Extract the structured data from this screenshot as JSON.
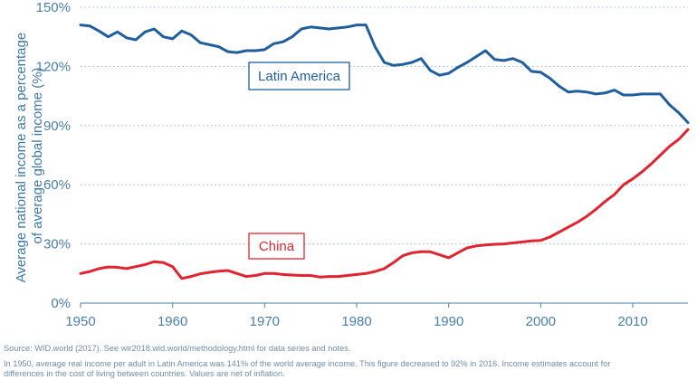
{
  "chart_data": {
    "type": "line",
    "ylabel": "Average national income as a percentage of average global income (%)",
    "ylabel_lines": [
      "Average national income as a percentage",
      "of average global income (%)"
    ],
    "xlim": [
      1950,
      2016
    ],
    "ylim": [
      0,
      150
    ],
    "x_ticks": [
      1950,
      1960,
      1970,
      1980,
      1990,
      2000,
      2010
    ],
    "y_ticks": [
      0,
      30,
      60,
      90,
      120,
      150
    ],
    "y_tick_labels": [
      "0%",
      "30%",
      "60%",
      "90%",
      "120%",
      "150%"
    ],
    "grid": "horizontal-dotted",
    "series": [
      {
        "name": "Latin America",
        "color": "#1f5f9e",
        "x": [
          1950,
          1951,
          1952,
          1953,
          1954,
          1955,
          1956,
          1957,
          1958,
          1959,
          1960,
          1961,
          1962,
          1963,
          1964,
          1965,
          1966,
          1967,
          1968,
          1969,
          1970,
          1971,
          1972,
          1973,
          1974,
          1975,
          1976,
          1977,
          1978,
          1979,
          1980,
          1981,
          1982,
          1983,
          1984,
          1985,
          1986,
          1987,
          1988,
          1989,
          1990,
          1991,
          1992,
          1993,
          1994,
          1995,
          1996,
          1997,
          1998,
          1999,
          2000,
          2001,
          2002,
          2003,
          2004,
          2005,
          2006,
          2007,
          2008,
          2009,
          2010,
          2011,
          2012,
          2013,
          2014,
          2015,
          2016
        ],
        "values": [
          141,
          140.5,
          138,
          135,
          137.5,
          134.5,
          133.5,
          137.5,
          139,
          135,
          134,
          138,
          136,
          132,
          131,
          130,
          127.5,
          127,
          128,
          128,
          128.5,
          131.5,
          132.5,
          135,
          139,
          140,
          139.5,
          139,
          139.5,
          140,
          141,
          141,
          130,
          122,
          120.5,
          121,
          122,
          124,
          118,
          115.5,
          116.5,
          119.5,
          122,
          125,
          128,
          123.5,
          123,
          124,
          122,
          117.5,
          117,
          114,
          110,
          107,
          107.5,
          107,
          106,
          106.5,
          108,
          105.5,
          105.5,
          106,
          106,
          106,
          100.5,
          96.5,
          91.5
        ]
      },
      {
        "name": "China",
        "color": "#e02530",
        "x": [
          1950,
          1951,
          1952,
          1953,
          1954,
          1955,
          1956,
          1957,
          1958,
          1959,
          1960,
          1961,
          1962,
          1963,
          1964,
          1965,
          1966,
          1967,
          1968,
          1969,
          1970,
          1971,
          1972,
          1973,
          1974,
          1975,
          1976,
          1977,
          1978,
          1979,
          1980,
          1981,
          1982,
          1983,
          1984,
          1985,
          1986,
          1987,
          1988,
          1989,
          1990,
          1991,
          1992,
          1993,
          1994,
          1995,
          1996,
          1997,
          1998,
          1999,
          2000,
          2001,
          2002,
          2003,
          2004,
          2005,
          2006,
          2007,
          2008,
          2009,
          2010,
          2011,
          2012,
          2013,
          2014,
          2015,
          2016
        ],
        "values": [
          15,
          16,
          17.5,
          18.3,
          18.1,
          17.5,
          18.5,
          19.5,
          21,
          20.5,
          18.5,
          12.5,
          13.5,
          14.8,
          15.6,
          16.2,
          16.5,
          15,
          13.5,
          14,
          15,
          15,
          14.5,
          14.2,
          14,
          14,
          13.2,
          13.5,
          13.5,
          14,
          14.5,
          15,
          16,
          17.5,
          20.5,
          24,
          25.5,
          26,
          26,
          24.5,
          23,
          25.5,
          28,
          29,
          29.5,
          29.8,
          30,
          30.5,
          31,
          31.5,
          31.8,
          33.5,
          36,
          38.5,
          41,
          44,
          47.5,
          51.5,
          55,
          60,
          63,
          66.5,
          70.5,
          75,
          79.5,
          83,
          88
        ]
      }
    ],
    "annotations": [
      "Latin America",
      "China"
    ]
  },
  "notes": {
    "source": "Source: WID.world (2017). See wir2018.wid.world/methodology.html for data series and notes.",
    "line1": "In 1950, average real income per adult in Latin America was 141% of the world average income. This figure decreased to 92% in 2016. Income estimates account for",
    "line2": "differences in the cost of living between countries. Values are net of inflation."
  }
}
